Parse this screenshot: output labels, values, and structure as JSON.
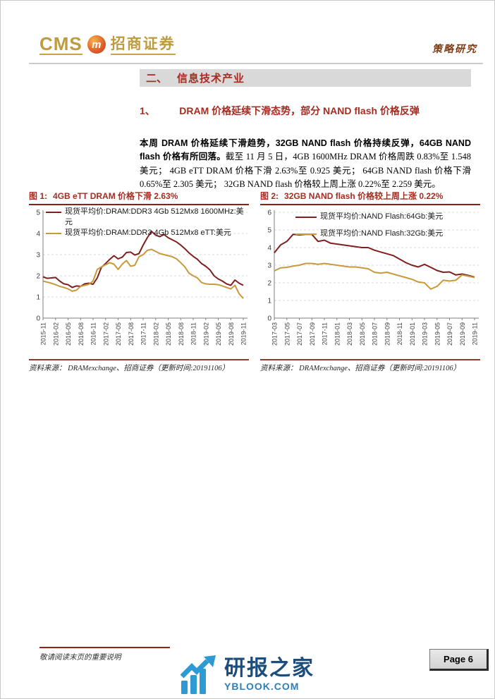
{
  "header": {
    "brand_cms": "CMS",
    "brand_badge": "m",
    "brand_name": "招商证券",
    "report_type": "策略研究"
  },
  "section": {
    "num": "二、",
    "title": "信息技术产业"
  },
  "subsection": {
    "num": "1、",
    "title": "DRAM 价格延续下滑态势，部分 NAND flash 价格反弹"
  },
  "paragraph": {
    "lead": "本周 DRAM 价格延续下滑趋势，32GB NAND flash 价格持续反弹，64GB NAND flash 价格有所回落。",
    "rest": "截至 11 月 5 日，4GB 1600MHz DRAM 价格周跌 0.83%至 1.548 美元； 4GB eTT DRAM 价格下滑 2.63%至 0.925 美元； 64GB NAND flash 价格下滑 0.65%至 2.305 美元； 32GB NAND flash 价格较上周上涨 0.22%至 2.259 美元。"
  },
  "figures": [
    {
      "label": "图 1:",
      "title": "4GB eTT DRAM 价格下滑 2.63%",
      "source": "资料来源： DRAMexchange、招商证券（更新时间:20191106）"
    },
    {
      "label": "图 2:",
      "title": "32GB NAND flash 价格较上周上涨 0.22%",
      "source": "资料来源： DRAMexchange、招商证券（更新时间:20191106）"
    }
  ],
  "chart_data": [
    {
      "type": "line",
      "title": "4GB eTT DRAM 价格下滑 2.63%",
      "ylabel": "美元",
      "ylim": [
        0,
        5
      ],
      "yticks": [
        0,
        1,
        2,
        3,
        4,
        5
      ],
      "grid": "dashed-horizontal",
      "legend_position": "top-left-inside",
      "x_tick_every": 3,
      "x": [
        "2015-11",
        "2015-12",
        "2016-01",
        "2016-02",
        "2016-03",
        "2016-04",
        "2016-05",
        "2016-06",
        "2016-07",
        "2016-08",
        "2016-09",
        "2016-10",
        "2016-11",
        "2016-12",
        "2017-01",
        "2017-02",
        "2017-03",
        "2017-04",
        "2017-05",
        "2017-06",
        "2017-07",
        "2017-08",
        "2017-09",
        "2017-10",
        "2017-11",
        "2017-12",
        "2018-01",
        "2018-02",
        "2018-03",
        "2018-04",
        "2018-05",
        "2018-06",
        "2018-07",
        "2018-08",
        "2018-09",
        "2018-10",
        "2018-11",
        "2018-12",
        "2019-01",
        "2019-02",
        "2019-03",
        "2019-04",
        "2019-05",
        "2019-06",
        "2019-07",
        "2019-08",
        "2019-09",
        "2019-10",
        "2019-11"
      ],
      "series": [
        {
          "name": "现货平均价:DRAM:DDR3 4Gb 512Mx8 1600MHz:美元",
          "color": "#801f1f",
          "values": [
            1.95,
            1.88,
            1.9,
            1.92,
            1.75,
            1.62,
            1.58,
            1.45,
            1.52,
            1.5,
            1.62,
            1.65,
            1.6,
            1.9,
            2.4,
            2.58,
            2.78,
            2.95,
            2.8,
            2.88,
            3.1,
            3.12,
            2.98,
            3.05,
            3.45,
            3.8,
            4.1,
            3.92,
            3.85,
            3.95,
            3.8,
            3.7,
            3.6,
            3.45,
            3.28,
            3.08,
            2.92,
            2.78,
            2.58,
            2.45,
            2.28,
            2.0,
            1.85,
            1.75,
            1.62,
            1.55,
            1.8,
            1.65,
            1.55
          ]
        },
        {
          "name": "现货平均价:DRAM:DDR3 4Gb 512Mx8 eTT:美元",
          "color": "#c79a3c",
          "values": [
            1.75,
            1.7,
            1.65,
            1.58,
            1.5,
            1.45,
            1.38,
            1.27,
            1.32,
            1.5,
            1.55,
            1.6,
            1.75,
            2.3,
            2.42,
            2.52,
            2.62,
            2.55,
            2.3,
            2.55,
            2.72,
            2.45,
            2.5,
            2.9,
            3.0,
            3.2,
            3.25,
            3.15,
            3.05,
            3.0,
            2.95,
            2.9,
            2.8,
            2.62,
            2.42,
            2.12,
            2.0,
            1.9,
            1.68,
            1.62,
            1.6,
            1.6,
            1.58,
            1.52,
            1.45,
            1.38,
            1.55,
            1.15,
            0.93
          ]
        }
      ]
    },
    {
      "type": "line",
      "title": "32GB NAND flash 价格较上周上涨 0.22%",
      "ylabel": "美元",
      "ylim": [
        0,
        6
      ],
      "yticks": [
        0,
        1,
        2,
        3,
        4,
        5,
        6
      ],
      "grid": "dashed-horizontal",
      "legend_position": "top-center-inside",
      "x_tick_every": 2,
      "x": [
        "2017-03",
        "2017-04",
        "2017-05",
        "2017-06",
        "2017-07",
        "2017-08",
        "2017-09",
        "2017-10",
        "2017-11",
        "2017-12",
        "2018-01",
        "2018-02",
        "2018-03",
        "2018-04",
        "2018-05",
        "2018-06",
        "2018-07",
        "2018-08",
        "2018-09",
        "2018-10",
        "2018-11",
        "2018-12",
        "2019-01",
        "2019-02",
        "2019-03",
        "2019-04",
        "2019-05",
        "2019-06",
        "2019-07",
        "2019-08",
        "2019-09",
        "2019-10",
        "2019-11"
      ],
      "series": [
        {
          "name": "现货平均价:NAND Flash:64Gb:美元",
          "color": "#801f1f",
          "values": [
            3.7,
            4.15,
            4.35,
            4.75,
            4.72,
            4.75,
            4.75,
            4.35,
            4.42,
            4.25,
            4.2,
            4.15,
            4.1,
            4.05,
            4.0,
            4.0,
            3.85,
            3.75,
            3.65,
            3.55,
            3.35,
            3.15,
            3.0,
            2.9,
            3.05,
            2.88,
            2.7,
            2.6,
            2.62,
            2.45,
            2.5,
            2.42,
            2.33
          ]
        },
        {
          "name": "现货平均价:NAND Flash:32Gb:美元",
          "color": "#c79a3c",
          "values": [
            2.68,
            2.85,
            2.88,
            2.95,
            3.0,
            3.1,
            3.1,
            3.05,
            3.1,
            3.05,
            3.0,
            2.95,
            2.9,
            2.9,
            2.85,
            2.8,
            2.6,
            2.55,
            2.6,
            2.5,
            2.4,
            2.3,
            2.2,
            2.05,
            2.0,
            1.65,
            1.8,
            2.15,
            2.1,
            2.15,
            2.45,
            2.38,
            2.3
          ]
        }
      ]
    }
  ],
  "footer": {
    "note": "敬请阅读末页的重要说明",
    "page_label": "Page 6",
    "watermark_title": "研报之家",
    "watermark_domain": "YBLOOK.COM"
  }
}
